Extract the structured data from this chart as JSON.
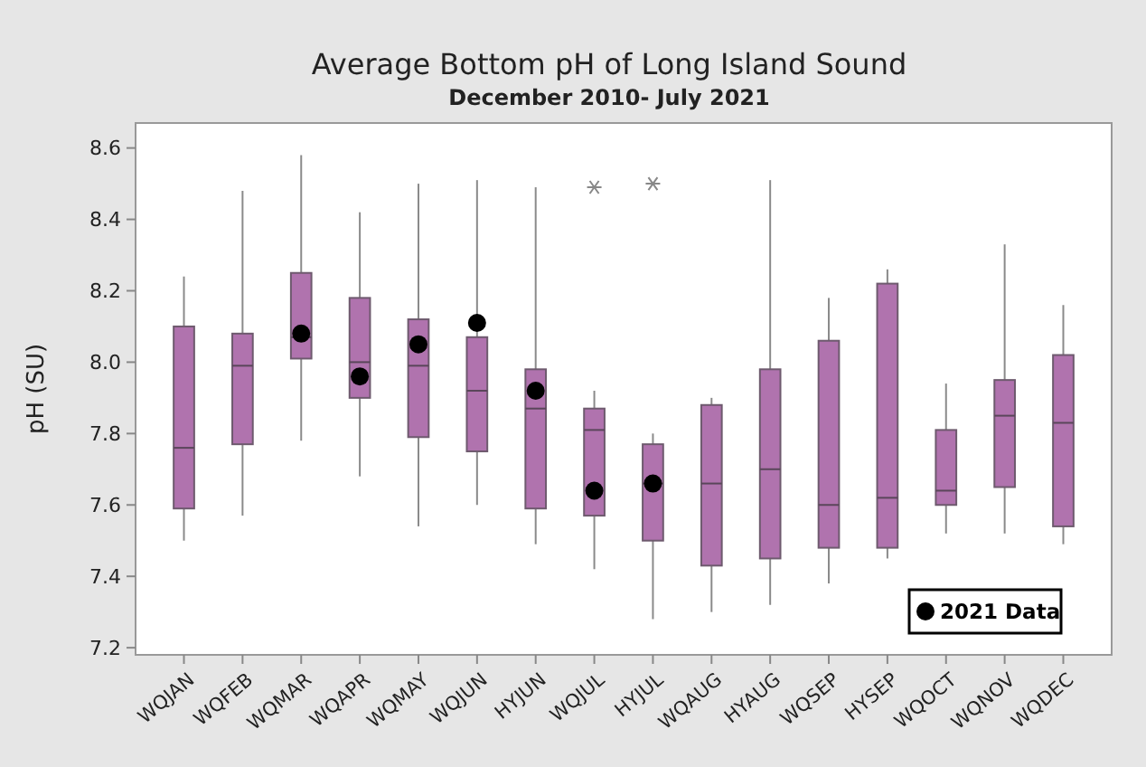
{
  "chart_data": {
    "type": "box",
    "title": "Average Bottom pH of Long Island Sound",
    "subtitle": "December 2010- July 2021",
    "ylabel": "pH (SU)",
    "categories": [
      "WQJAN",
      "WQFEB",
      "WQMAR",
      "WQAPR",
      "WQMAY",
      "WQJUN",
      "HYJUN",
      "WQJUL",
      "HYJUL",
      "WQAUG",
      "HYAUG",
      "WQSEP",
      "HYSEP",
      "WQOCT",
      "WQNOV",
      "WQDEC"
    ],
    "ylim": [
      7.18,
      8.67
    ],
    "yticks": [
      7.2,
      7.4,
      7.6,
      7.8,
      {
        "value": 8,
        "label": "8.0"
      },
      8.2,
      8.4,
      8.6
    ],
    "grid": false,
    "legend": "bottom right",
    "series": [
      {
        "color": "#b073ae",
        "boxes": [
          {
            "low": 7.5,
            "q1": 7.59,
            "median": 7.76,
            "q3": 8.1,
            "high": 8.24
          },
          {
            "low": 7.57,
            "q1": 7.77,
            "median": 7.99,
            "q3": 8.08,
            "high": 8.48
          },
          {
            "low": 7.78,
            "q1": 8.01,
            "median": 8.07,
            "q3": 8.25,
            "high": 8.58
          },
          {
            "low": 7.68,
            "q1": 7.9,
            "median": 8.0,
            "q3": 8.18,
            "high": 8.42
          },
          {
            "low": 7.54,
            "q1": 7.79,
            "median": 7.99,
            "q3": 8.12,
            "high": 8.5
          },
          {
            "low": 7.6,
            "q1": 7.75,
            "median": 7.92,
            "q3": 8.07,
            "high": 8.51
          },
          {
            "low": 7.49,
            "q1": 7.59,
            "median": 7.87,
            "q3": 7.98,
            "high": 8.49
          },
          {
            "low": 7.42,
            "q1": 7.57,
            "median": 7.81,
            "q3": 7.87,
            "high": 7.92,
            "outliers": [
              8.49
            ]
          },
          {
            "low": 7.28,
            "q1": 7.5,
            "median": 7.66,
            "q3": 7.77,
            "high": 7.8,
            "outliers": [
              8.5
            ]
          },
          {
            "low": 7.3,
            "q1": 7.43,
            "median": 7.66,
            "q3": 7.88,
            "high": 7.9
          },
          {
            "low": 7.32,
            "q1": 7.45,
            "median": 7.7,
            "q3": 7.98,
            "high": 8.51
          },
          {
            "low": 7.38,
            "q1": 7.48,
            "median": 7.6,
            "q3": 8.06,
            "high": 8.18
          },
          {
            "low": 7.45,
            "q1": 7.48,
            "median": 7.62,
            "q3": 8.22,
            "high": 8.26
          },
          {
            "low": 7.52,
            "q1": 7.6,
            "median": 7.64,
            "q3": 7.81,
            "high": 7.94
          },
          {
            "low": 7.52,
            "q1": 7.65,
            "median": 7.85,
            "q3": 7.95,
            "high": 8.33
          },
          {
            "low": 7.49,
            "q1": 7.54,
            "median": 7.83,
            "q3": 8.02,
            "high": 8.16
          }
        ]
      },
      {
        "type": "scatter",
        "name": "2021 Data",
        "color": "#000000",
        "marker": "circle",
        "x": [
          "WQMAR",
          "WQAPR",
          "WQMAY",
          "WQJUN",
          "HYJUN",
          "WQJUL",
          "HYJUL"
        ],
        "values": [
          8.08,
          7.96,
          8.05,
          8.11,
          7.92,
          7.64,
          7.66
        ]
      }
    ]
  }
}
